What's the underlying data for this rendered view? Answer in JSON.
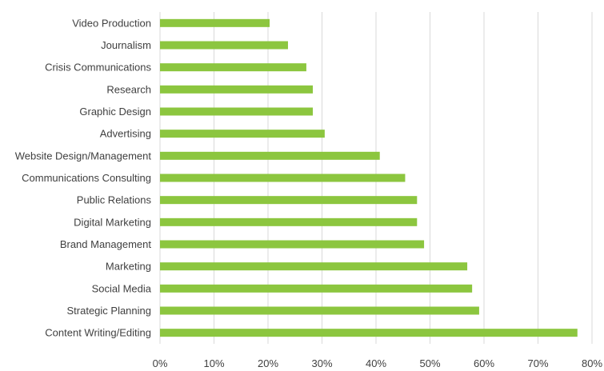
{
  "chart_data": {
    "type": "bar",
    "orientation": "horizontal",
    "title": "",
    "xlabel": "",
    "ylabel": "",
    "categories": [
      "Video Production",
      "Journalism",
      "Crisis Communications",
      "Research",
      "Graphic Design",
      "Advertising",
      "Website Design/Management",
      "Communications Consulting",
      "Public Relations",
      "Digital Marketing",
      "Brand Management",
      "Marketing",
      "Social Media",
      "Strategic Planning",
      "Content Writing/Editing"
    ],
    "values": [
      20.3,
      23.7,
      27.1,
      28.3,
      28.3,
      30.5,
      40.7,
      45.4,
      47.6,
      47.6,
      48.9,
      56.9,
      57.8,
      59.1,
      77.3
    ],
    "value_unit": "%",
    "xlim": [
      0,
      80
    ],
    "x_ticks": [
      "0%",
      "10%",
      "20%",
      "30%",
      "40%",
      "50%",
      "60%",
      "70%",
      "80%"
    ],
    "grid": true,
    "legend": "none",
    "bar_color": "#8cc63f"
  }
}
